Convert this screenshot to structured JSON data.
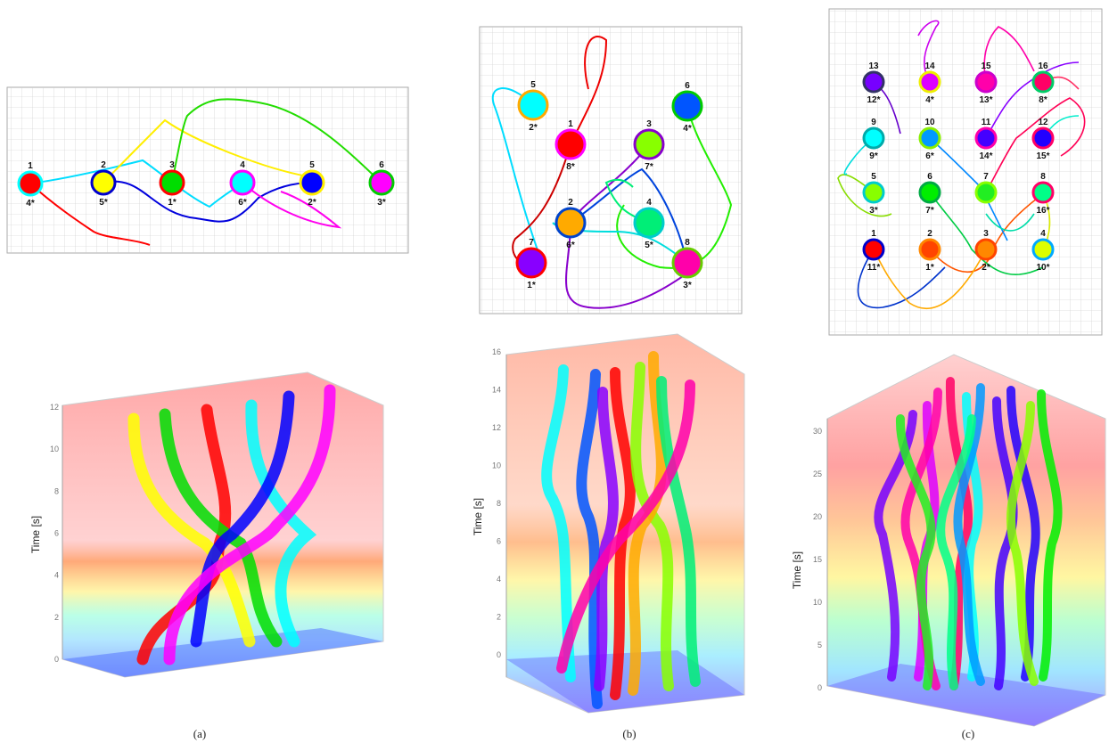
{
  "captions": [
    "(a)",
    "(b)",
    "(c)"
  ],
  "axis_title": "Time [s]",
  "panel_a": {
    "nodes": [
      {
        "id": "1",
        "target": "4*",
        "fill": "#ff0000",
        "ring": "#00ffff"
      },
      {
        "id": "2",
        "target": "5*",
        "fill": "#ffff00",
        "ring": "#0000cc"
      },
      {
        "id": "3",
        "target": "1*",
        "fill": "#00dd00",
        "ring": "#ff0000"
      },
      {
        "id": "4",
        "target": "6*",
        "fill": "#00ffff",
        "ring": "#ff00ff"
      },
      {
        "id": "5",
        "target": "2*",
        "fill": "#0000ff",
        "ring": "#ffee00"
      },
      {
        "id": "6",
        "target": "3*",
        "fill": "#ff00ff",
        "ring": "#00cc00"
      }
    ],
    "ticks": [
      "0",
      "2",
      "4",
      "6",
      "8",
      "10",
      "12"
    ]
  },
  "panel_b": {
    "nodes": [
      {
        "id": "5",
        "target": "2*",
        "fill": "#00ffff",
        "ring": "#ffaa00"
      },
      {
        "id": "6",
        "target": "4*",
        "fill": "#0055ff",
        "ring": "#00cc00"
      },
      {
        "id": "1",
        "target": "8*",
        "fill": "#ff0000",
        "ring": "#ff00ff"
      },
      {
        "id": "3",
        "target": "7*",
        "fill": "#88ff00",
        "ring": "#8800cc"
      },
      {
        "id": "2",
        "target": "6*",
        "fill": "#ffaa00",
        "ring": "#0044cc"
      },
      {
        "id": "4",
        "target": "5*",
        "fill": "#00ee77",
        "ring": "#00cccc"
      },
      {
        "id": "7",
        "target": "1*",
        "fill": "#8800ff",
        "ring": "#ff0000"
      },
      {
        "id": "8",
        "target": "3*",
        "fill": "#ff00aa",
        "ring": "#66cc00"
      }
    ],
    "ticks": [
      "0",
      "2",
      "4",
      "6",
      "8",
      "10",
      "12",
      "14",
      "16"
    ]
  },
  "panel_c": {
    "nodes": [
      {
        "id": "13",
        "target": "12*",
        "fill": "#7700ff",
        "ring": "#333366"
      },
      {
        "id": "14",
        "target": "4*",
        "fill": "#dd00ff",
        "ring": "#eeee00"
      },
      {
        "id": "15",
        "target": "13*",
        "fill": "#ff00aa",
        "ring": "#cc00cc"
      },
      {
        "id": "16",
        "target": "8*",
        "fill": "#ff0066",
        "ring": "#00cc66"
      },
      {
        "id": "9",
        "target": "9*",
        "fill": "#00ffff",
        "ring": "#00aaaa"
      },
      {
        "id": "10",
        "target": "6*",
        "fill": "#0099ff",
        "ring": "#88ee00"
      },
      {
        "id": "11",
        "target": "14*",
        "fill": "#4400ff",
        "ring": "#ff00aa"
      },
      {
        "id": "12",
        "target": "15*",
        "fill": "#2200ff",
        "ring": "#ff0066"
      },
      {
        "id": "5",
        "target": "3*",
        "fill": "#88ff00",
        "ring": "#00cccc"
      },
      {
        "id": "6",
        "target": "7*",
        "fill": "#00ee00",
        "ring": "#00aa44"
      },
      {
        "id": "7",
        "target": "",
        "fill": "#22ee22",
        "ring": "#88ff00"
      },
      {
        "id": "8",
        "target": "16*",
        "fill": "#00ff88",
        "ring": "#ff0066"
      },
      {
        "id": "1",
        "target": "11*",
        "fill": "#ff0000",
        "ring": "#0000cc"
      },
      {
        "id": "2",
        "target": "1*",
        "fill": "#ff4400",
        "ring": "#ff8800"
      },
      {
        "id": "3",
        "target": "2*",
        "fill": "#ff8800",
        "ring": "#ff4400"
      },
      {
        "id": "4",
        "target": "10*",
        "fill": "#ddff00",
        "ring": "#00aaff"
      }
    ],
    "ticks": [
      "0",
      "5",
      "10",
      "15",
      "20",
      "25",
      "30"
    ]
  }
}
